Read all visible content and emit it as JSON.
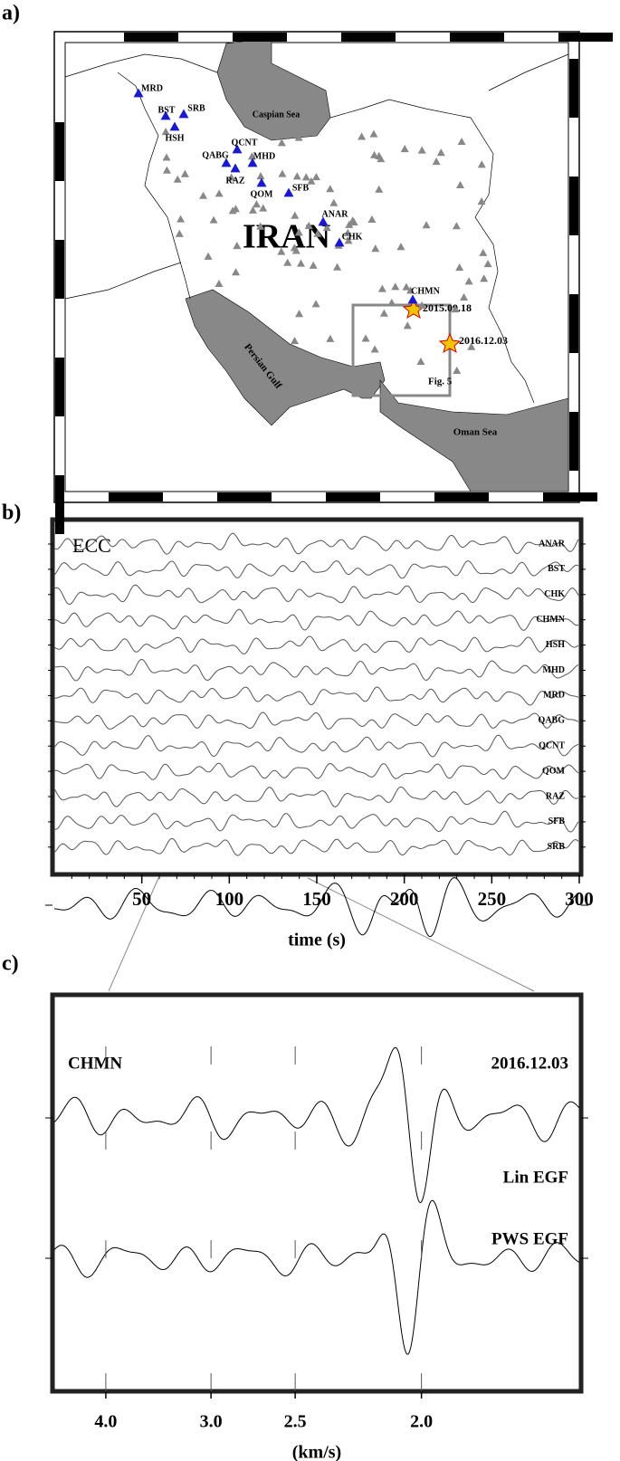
{
  "panels": {
    "a": {
      "label": "a)",
      "map": {
        "country": "IRAN",
        "seas": [
          "Caspian Sea",
          "Persian Gulf",
          "Oman Sea"
        ],
        "stations": [
          "MRD",
          "BST",
          "SRB",
          "HSH",
          "QCNT",
          "QABG",
          "MHD",
          "RAZ",
          "QOM",
          "SFB",
          "ANAR",
          "CHK",
          "CHMN"
        ],
        "events": [
          "2015.09.18",
          "2016.12.03"
        ],
        "box_label": "Fig. 5"
      }
    },
    "b": {
      "label": "b)",
      "title": "ECC",
      "traces": [
        "ANAR",
        "BST",
        "CHK",
        "CHMN",
        "HSH",
        "MHD",
        "MRD",
        "QABG",
        "QCNT",
        "QOM",
        "RAZ",
        "SFB",
        "SRB"
      ],
      "xlabel": "time (s)",
      "xlim": [
        0,
        300
      ],
      "xticks": [
        50,
        100,
        150,
        200,
        250,
        300
      ]
    },
    "c": {
      "label": "c)",
      "station": "CHMN",
      "traces": [
        "2016.12.03",
        "Lin  EGF",
        "PWS  EGF"
      ],
      "xlabel": "(km/s)",
      "xlim": [
        4.78,
        1.6
      ],
      "x_scale": "reciprocal",
      "xticks": [
        {
          "value": 4,
          "label": "4.0"
        },
        {
          "value": 3,
          "label": "3.0"
        },
        {
          "value": 2.5,
          "label": "2.5"
        },
        {
          "value": 2,
          "label": "2.0"
        }
      ]
    }
  }
}
